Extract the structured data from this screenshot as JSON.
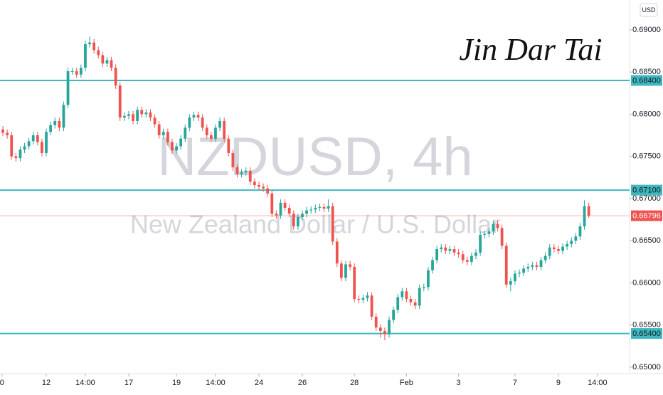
{
  "chart_data": {
    "type": "candlestick",
    "title": "NZDUSD, 4h",
    "subtitle": "New Zealand Dollar / U.S. Dollar",
    "signature": "Jin Dar Tai",
    "currency": "USD",
    "up_color": "#26a69a",
    "down_color": "#ef5350",
    "level_color": "#3fb8c0",
    "xlim": [
      -0.66,
      144.4
    ],
    "xticks": [
      {
        "value": -0.2,
        "label": "0"
      },
      {
        "value": 10,
        "label": "12"
      },
      {
        "value": 19,
        "label": "14:00"
      },
      {
        "value": 29,
        "label": "17"
      },
      {
        "value": 40,
        "label": "19"
      },
      {
        "value": 49,
        "label": "14:00"
      },
      {
        "value": 59,
        "label": "24"
      },
      {
        "value": 69,
        "label": "26"
      },
      {
        "value": 81,
        "label": "28"
      },
      {
        "value": 93,
        "label": "Feb"
      },
      {
        "value": 105,
        "label": "3"
      },
      {
        "value": 118,
        "label": "7"
      },
      {
        "value": 128,
        "label": "9"
      },
      {
        "value": 137,
        "label": "14:00"
      }
    ],
    "ylim": [
      0.64966,
      0.69354
    ],
    "yticks": [
      {
        "value": 0.65,
        "label": "0.65000"
      },
      {
        "value": 0.655,
        "label": "0.65500"
      },
      {
        "value": 0.66,
        "label": "0.66000"
      },
      {
        "value": 0.665,
        "label": "0.66500"
      },
      {
        "value": 0.67,
        "label": "0.67000"
      },
      {
        "value": 0.675,
        "label": "0.67500"
      },
      {
        "value": 0.68,
        "label": "0.68000"
      },
      {
        "value": 0.685,
        "label": "0.68500"
      },
      {
        "value": 0.69,
        "label": "0.69000"
      }
    ],
    "levels": [
      {
        "value": 0.684,
        "label": "0.68400"
      },
      {
        "value": 0.671,
        "label": "0.67100"
      },
      {
        "value": 0.654,
        "label": "0.65400"
      }
    ],
    "ohlc": [
      [
        0.6782,
        0.6786,
        0.6774,
        0.6778
      ],
      [
        0.6778,
        0.6782,
        0.6771,
        0.6775
      ],
      [
        0.6775,
        0.6779,
        0.6746,
        0.675
      ],
      [
        0.675,
        0.6754,
        0.6744,
        0.6748
      ],
      [
        0.6748,
        0.6762,
        0.6744,
        0.6758
      ],
      [
        0.6758,
        0.6766,
        0.6754,
        0.6762
      ],
      [
        0.6762,
        0.6772,
        0.6758,
        0.6768
      ],
      [
        0.6768,
        0.6779,
        0.6764,
        0.6775
      ],
      [
        0.6775,
        0.6779,
        0.6763,
        0.6767
      ],
      [
        0.6767,
        0.6771,
        0.675,
        0.6754
      ],
      [
        0.6754,
        0.6783,
        0.675,
        0.6779
      ],
      [
        0.6779,
        0.6791,
        0.6775,
        0.6787
      ],
      [
        0.6787,
        0.6796,
        0.6783,
        0.6792
      ],
      [
        0.6792,
        0.6796,
        0.678,
        0.6784
      ],
      [
        0.6784,
        0.6815,
        0.678,
        0.6811
      ],
      [
        0.6811,
        0.6855,
        0.6807,
        0.6851
      ],
      [
        0.6851,
        0.6855,
        0.6847,
        0.6851
      ],
      [
        0.6851,
        0.6855,
        0.6843,
        0.6847
      ],
      [
        0.6847,
        0.6859,
        0.6843,
        0.6855
      ],
      [
        0.6855,
        0.6887,
        0.6851,
        0.6883
      ],
      [
        0.6883,
        0.6892,
        0.6879,
        0.6885
      ],
      [
        0.6885,
        0.6889,
        0.6872,
        0.6876
      ],
      [
        0.6876,
        0.688,
        0.6866,
        0.687
      ],
      [
        0.687,
        0.6874,
        0.6856,
        0.686
      ],
      [
        0.686,
        0.6868,
        0.6856,
        0.6864
      ],
      [
        0.6864,
        0.6868,
        0.6851,
        0.6855
      ],
      [
        0.6855,
        0.6859,
        0.683,
        0.6834
      ],
      [
        0.6834,
        0.6838,
        0.6792,
        0.6796
      ],
      [
        0.6796,
        0.6802,
        0.6792,
        0.6798
      ],
      [
        0.6798,
        0.6804,
        0.6794,
        0.68
      ],
      [
        0.68,
        0.6804,
        0.6788,
        0.6792
      ],
      [
        0.6792,
        0.6809,
        0.6788,
        0.6805
      ],
      [
        0.6805,
        0.6809,
        0.6796,
        0.68
      ],
      [
        0.68,
        0.6806,
        0.6796,
        0.6802
      ],
      [
        0.6802,
        0.6806,
        0.6792,
        0.6796
      ],
      [
        0.6796,
        0.68,
        0.6784,
        0.6788
      ],
      [
        0.6788,
        0.6792,
        0.6771,
        0.6775
      ],
      [
        0.6775,
        0.6783,
        0.6771,
        0.6779
      ],
      [
        0.6779,
        0.6783,
        0.6763,
        0.6767
      ],
      [
        0.6767,
        0.6771,
        0.6753,
        0.6757
      ],
      [
        0.6757,
        0.6766,
        0.6753,
        0.6762
      ],
      [
        0.6762,
        0.6775,
        0.6758,
        0.6771
      ],
      [
        0.6771,
        0.6788,
        0.6767,
        0.6784
      ],
      [
        0.6784,
        0.68,
        0.678,
        0.6796
      ],
      [
        0.6796,
        0.6803,
        0.6792,
        0.6799
      ],
      [
        0.6799,
        0.6803,
        0.6792,
        0.6796
      ],
      [
        0.6796,
        0.68,
        0.678,
        0.6784
      ],
      [
        0.6784,
        0.6788,
        0.6771,
        0.6775
      ],
      [
        0.6775,
        0.6779,
        0.6767,
        0.6771
      ],
      [
        0.6771,
        0.6788,
        0.6767,
        0.6784
      ],
      [
        0.6784,
        0.6796,
        0.678,
        0.6792
      ],
      [
        0.6792,
        0.6796,
        0.6767,
        0.6771
      ],
      [
        0.6771,
        0.6775,
        0.675,
        0.6754
      ],
      [
        0.6754,
        0.6758,
        0.6733,
        0.6737
      ],
      [
        0.6737,
        0.6741,
        0.6725,
        0.6729
      ],
      [
        0.6729,
        0.6735,
        0.6725,
        0.6731
      ],
      [
        0.6731,
        0.6737,
        0.6727,
        0.6733
      ],
      [
        0.6733,
        0.6737,
        0.6716,
        0.672
      ],
      [
        0.672,
        0.6724,
        0.6712,
        0.6716
      ],
      [
        0.6716,
        0.672,
        0.671,
        0.6714
      ],
      [
        0.6714,
        0.6718,
        0.6708,
        0.6712
      ],
      [
        0.6712,
        0.6716,
        0.6702,
        0.6706
      ],
      [
        0.6706,
        0.671,
        0.6678,
        0.6682
      ],
      [
        0.6682,
        0.6686,
        0.6676,
        0.668
      ],
      [
        0.668,
        0.6699,
        0.6676,
        0.6695
      ],
      [
        0.6695,
        0.6699,
        0.6685,
        0.6689
      ],
      [
        0.6689,
        0.6693,
        0.6678,
        0.6682
      ],
      [
        0.6682,
        0.6686,
        0.6663,
        0.6667
      ],
      [
        0.6667,
        0.6682,
        0.6663,
        0.6678
      ],
      [
        0.6678,
        0.6686,
        0.6674,
        0.6682
      ],
      [
        0.6682,
        0.669,
        0.6678,
        0.6686
      ],
      [
        0.6686,
        0.6691,
        0.6682,
        0.6687
      ],
      [
        0.6687,
        0.6693,
        0.6683,
        0.6689
      ],
      [
        0.6689,
        0.6694,
        0.6685,
        0.669
      ],
      [
        0.669,
        0.6694,
        0.6684,
        0.6688
      ],
      [
        0.6688,
        0.6699,
        0.6684,
        0.6691
      ],
      [
        0.6691,
        0.6695,
        0.6645,
        0.6649
      ],
      [
        0.6649,
        0.6653,
        0.6619,
        0.6623
      ],
      [
        0.6623,
        0.6627,
        0.6602,
        0.6606
      ],
      [
        0.6606,
        0.6626,
        0.6602,
        0.6622
      ],
      [
        0.6622,
        0.6626,
        0.6615,
        0.6619
      ],
      [
        0.6619,
        0.6623,
        0.6577,
        0.6581
      ],
      [
        0.6581,
        0.6585,
        0.6576,
        0.658
      ],
      [
        0.658,
        0.6586,
        0.6576,
        0.6582
      ],
      [
        0.6582,
        0.6589,
        0.6578,
        0.6585
      ],
      [
        0.6585,
        0.6589,
        0.6556,
        0.656
      ],
      [
        0.656,
        0.6564,
        0.6543,
        0.6547
      ],
      [
        0.6547,
        0.6551,
        0.6535,
        0.6543
      ],
      [
        0.6543,
        0.6547,
        0.6532,
        0.6539
      ],
      [
        0.6539,
        0.656,
        0.6535,
        0.6556
      ],
      [
        0.6556,
        0.6572,
        0.6552,
        0.6568
      ],
      [
        0.6568,
        0.6587,
        0.6564,
        0.6583
      ],
      [
        0.6583,
        0.6594,
        0.6579,
        0.659
      ],
      [
        0.659,
        0.6594,
        0.6577,
        0.6581
      ],
      [
        0.6581,
        0.6585,
        0.6573,
        0.6577
      ],
      [
        0.6577,
        0.6581,
        0.6569,
        0.6573
      ],
      [
        0.6573,
        0.6598,
        0.6569,
        0.6594
      ],
      [
        0.6594,
        0.6599,
        0.659,
        0.6595
      ],
      [
        0.6595,
        0.6619,
        0.6591,
        0.6615
      ],
      [
        0.6615,
        0.6631,
        0.6611,
        0.6627
      ],
      [
        0.6627,
        0.6644,
        0.6623,
        0.664
      ],
      [
        0.664,
        0.6646,
        0.6636,
        0.6642
      ],
      [
        0.6642,
        0.6646,
        0.6634,
        0.6638
      ],
      [
        0.6638,
        0.6644,
        0.6634,
        0.664
      ],
      [
        0.664,
        0.6644,
        0.6632,
        0.6636
      ],
      [
        0.6636,
        0.664,
        0.663,
        0.6634
      ],
      [
        0.6634,
        0.6638,
        0.6623,
        0.6627
      ],
      [
        0.6627,
        0.6631,
        0.6621,
        0.6625
      ],
      [
        0.6625,
        0.6636,
        0.6621,
        0.6632
      ],
      [
        0.6632,
        0.664,
        0.6628,
        0.6636
      ],
      [
        0.6636,
        0.6661,
        0.6632,
        0.6657
      ],
      [
        0.6657,
        0.6662,
        0.6653,
        0.6658
      ],
      [
        0.6658,
        0.6665,
        0.6654,
        0.6661
      ],
      [
        0.6661,
        0.6674,
        0.6657,
        0.667
      ],
      [
        0.667,
        0.6674,
        0.6661,
        0.6665
      ],
      [
        0.6665,
        0.6669,
        0.664,
        0.6644
      ],
      [
        0.6644,
        0.6648,
        0.6594,
        0.6598
      ],
      [
        0.6598,
        0.6606,
        0.659,
        0.6602
      ],
      [
        0.6602,
        0.6615,
        0.6598,
        0.6611
      ],
      [
        0.6611,
        0.6616,
        0.6607,
        0.6612
      ],
      [
        0.6612,
        0.6621,
        0.6608,
        0.6617
      ],
      [
        0.6617,
        0.6623,
        0.6613,
        0.6619
      ],
      [
        0.6619,
        0.6625,
        0.6615,
        0.6621
      ],
      [
        0.6621,
        0.6625,
        0.6615,
        0.6619
      ],
      [
        0.6619,
        0.6631,
        0.6615,
        0.6627
      ],
      [
        0.6627,
        0.6636,
        0.6623,
        0.6632
      ],
      [
        0.6632,
        0.6646,
        0.6628,
        0.6642
      ],
      [
        0.6642,
        0.6646,
        0.6636,
        0.664
      ],
      [
        0.664,
        0.6644,
        0.6634,
        0.6638
      ],
      [
        0.6638,
        0.6647,
        0.6634,
        0.6643
      ],
      [
        0.6643,
        0.665,
        0.6639,
        0.6646
      ],
      [
        0.6646,
        0.6654,
        0.6642,
        0.665
      ],
      [
        0.665,
        0.6659,
        0.6646,
        0.6655
      ],
      [
        0.6655,
        0.6671,
        0.6651,
        0.6667
      ],
      [
        0.6667,
        0.6698,
        0.6663,
        0.6691
      ],
      [
        0.6691,
        0.6695,
        0.6677,
        0.66796
      ]
    ]
  }
}
